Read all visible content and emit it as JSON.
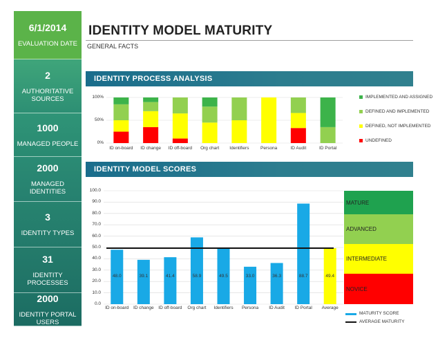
{
  "sidebar": {
    "tiles": [
      {
        "value": "6/1/2014",
        "label": "EVALUATION DATE"
      },
      {
        "value": "2",
        "label": "AUTHORITATIVE SOURCES"
      },
      {
        "value": "1000",
        "label": "MANAGED PEOPLE"
      },
      {
        "value": "2000",
        "label": "MANAGED IDENTITIES"
      },
      {
        "value": "3",
        "label": "IDENTITY TYPES"
      },
      {
        "value": "31",
        "label": "IDENTITY PROCESSES"
      },
      {
        "value": "2000",
        "label": "IDENTITY PORTAL USERS"
      }
    ]
  },
  "header": {
    "title": "IDENTITY MODEL MATURITY",
    "subtitle": "GENERAL FACTS"
  },
  "sections": {
    "process_title": "IDENTITY PROCESS ANALYSIS",
    "scores_title": "IDENTITY MODEL SCORES"
  },
  "colors": {
    "implemented": "#3cb34a",
    "defined_implemented": "#92d050",
    "defined_not_implemented": "#ffff00",
    "undefined": "#ff0000",
    "score_bar": "#19a9e6",
    "average_bar": "#ffff00"
  },
  "chart_data": [
    {
      "type": "bar",
      "stacked": true,
      "categories": [
        "ID on-board",
        "ID change",
        "ID off-board",
        "Org chart",
        "Identifiers",
        "Persona",
        "ID Audit",
        "ID Portal"
      ],
      "ylim": [
        0,
        100
      ],
      "yticks": [
        "0%",
        "50%",
        "100%"
      ],
      "series": [
        {
          "name": "UNDEFINED",
          "values": [
            25,
            35,
            10,
            0,
            0,
            0,
            33,
            0
          ]
        },
        {
          "name": "DEFINED, NOT IMPLEMENTED",
          "values": [
            25,
            35,
            55,
            45,
            50,
            100,
            33,
            0
          ]
        },
        {
          "name": "DEFINED AND IMPLEMENTED",
          "values": [
            35,
            20,
            35,
            35,
            50,
            0,
            34,
            35
          ]
        },
        {
          "name": "IMPLEMENTED AND ASSIGNED",
          "values": [
            15,
            10,
            0,
            20,
            0,
            0,
            0,
            65
          ]
        }
      ],
      "legend": "right",
      "grid": true
    },
    {
      "type": "bar",
      "categories": [
        "ID on-board",
        "ID change",
        "ID off-board",
        "Org chart",
        "Identifiers",
        "Persona",
        "ID Audit",
        "ID Portal",
        "Average"
      ],
      "values": [
        48.0,
        39.1,
        41.4,
        58.9,
        49.5,
        33.0,
        36.3,
        88.7,
        49.4
      ],
      "value_labels": [
        "48.0",
        "39.1",
        "41.4",
        "58.9",
        "49.5",
        "33.0",
        "36.3",
        "88.7",
        "49.4"
      ],
      "average_maturity": 49.4,
      "ylim": [
        0,
        100
      ],
      "yticks": [
        "0.0",
        "10.0",
        "20.0",
        "30.0",
        "40.0",
        "50.0",
        "60.0",
        "70.0",
        "80.0",
        "90.0",
        "100.0"
      ],
      "series_names": {
        "bars": "MATURITY SCORE",
        "line": "AVERAGE MATURITY"
      },
      "maturity_levels": [
        "MATURE",
        "ADVANCED",
        "INTERMEDIATE",
        "NOVICE"
      ],
      "legend": "bottom-right",
      "grid": true
    }
  ]
}
